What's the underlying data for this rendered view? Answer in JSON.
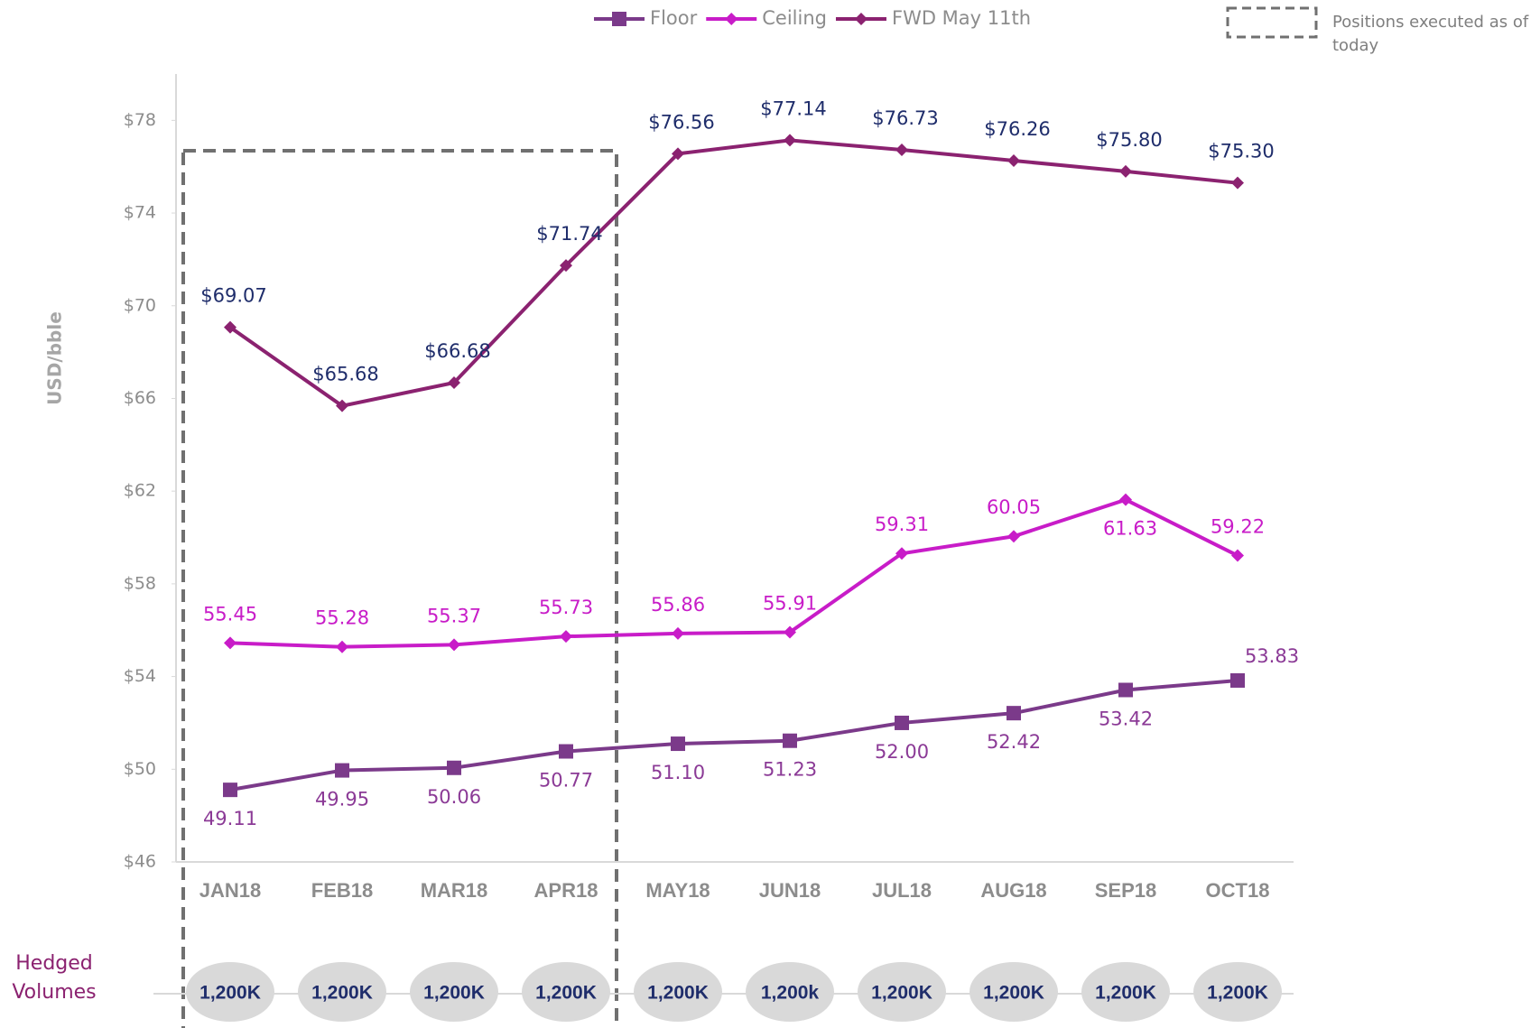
{
  "chart_data": {
    "type": "line",
    "y_axis_label": "USD/bble",
    "categories": [
      "JAN18",
      "FEB18",
      "MAR18",
      "APR18",
      "MAY18",
      "JUN18",
      "JUL18",
      "AUG18",
      "SEP18",
      "OCT18"
    ],
    "series": [
      {
        "name": "Floor",
        "color": "#7b3a8a",
        "marker": "square",
        "values": [
          49.11,
          49.95,
          50.06,
          50.77,
          51.1,
          51.23,
          52.0,
          52.42,
          53.42,
          53.83
        ],
        "value_labels": [
          "49.11",
          "49.95",
          "50.06",
          "50.77",
          "51.10",
          "51.23",
          "52.00",
          "52.42",
          "53.42",
          "53.83"
        ]
      },
      {
        "name": "Ceiling",
        "color": "#c81cc8",
        "marker": "diamond",
        "values": [
          55.45,
          55.28,
          55.37,
          55.73,
          55.86,
          55.91,
          59.31,
          60.05,
          61.63,
          59.22
        ],
        "value_labels": [
          "55.45",
          "55.28",
          "55.37",
          "55.73",
          "55.86",
          "55.91",
          "59.31",
          "60.05",
          "61.63",
          "59.22"
        ]
      },
      {
        "name": "FWD May 11th",
        "color": "#8b2270",
        "marker": "diamond",
        "values": [
          69.07,
          65.68,
          66.68,
          71.74,
          76.56,
          77.14,
          76.73,
          76.26,
          75.8,
          75.3
        ],
        "value_labels": [
          "$69.07",
          "$65.68",
          "$66.68",
          "$71.74",
          "$76.56",
          "$77.14",
          "$76.73",
          "$76.26",
          "$75.80",
          "$75.30"
        ]
      }
    ],
    "ylim": [
      46,
      80
    ],
    "yticks": [
      {
        "value": 46,
        "label": "$46"
      },
      {
        "value": 50,
        "label": "$50"
      },
      {
        "value": 54,
        "label": "$54"
      },
      {
        "value": 58,
        "label": "$58"
      },
      {
        "value": 62,
        "label": "$62"
      },
      {
        "value": 66,
        "label": "$66"
      },
      {
        "value": 70,
        "label": "$70"
      },
      {
        "value": 74,
        "label": "$74"
      },
      {
        "value": 78,
        "label": "$78"
      }
    ],
    "grid": false,
    "legend": "top",
    "annotation": "Positions executed as of today",
    "hedged_volumes_title": [
      "Hedged",
      "Volumes"
    ],
    "hedged_volumes": [
      "1,200K",
      "1,200K",
      "1,200K",
      "1,200K",
      "1,200K",
      "1,200k",
      "1,200K",
      "1,200K",
      "1,200K",
      "1,200K"
    ]
  }
}
